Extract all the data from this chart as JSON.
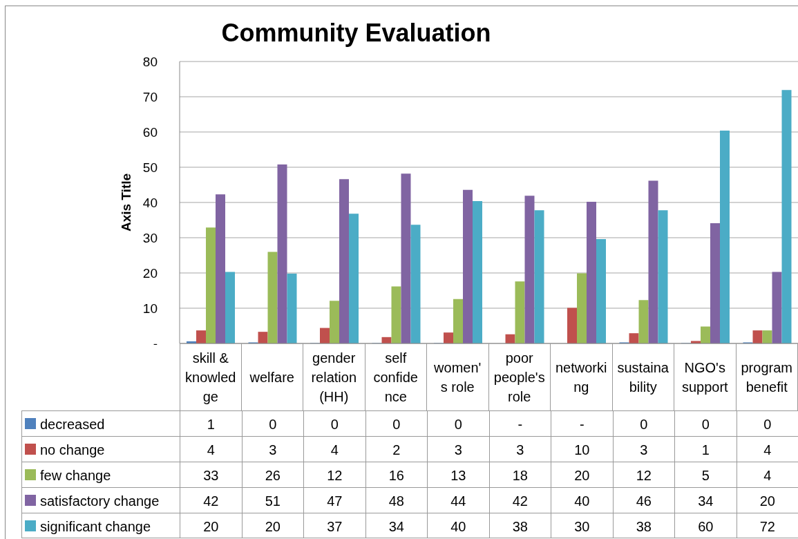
{
  "chart_data": {
    "type": "bar",
    "title": "Community Evaluation",
    "ylabel": "Axis Title",
    "categories": [
      "skill & knowledge",
      "welfare",
      "gender relation (HH)",
      "self confidence",
      "women's role",
      "poor people's role",
      "networking",
      "sustainability",
      "NGO's support",
      "program benefit"
    ],
    "series": [
      {
        "name": "decreased",
        "color": "#4f81bd",
        "values": [
          0.6,
          0.3,
          0.1,
          0.1,
          0.1,
          0,
          0,
          0.3,
          0.1,
          0.3
        ],
        "value_labels": [
          "1",
          "0",
          "0",
          "0",
          "0",
          "-",
          "-",
          "0",
          "0",
          "0"
        ]
      },
      {
        "name": "no change",
        "color": "#c0504d",
        "values": [
          3.7,
          3.3,
          4.4,
          1.8,
          3.1,
          2.6,
          10.1,
          2.9,
          0.7,
          3.7
        ],
        "value_labels": [
          "4",
          "3",
          "4",
          "2",
          "3",
          "3",
          "10",
          "3",
          "1",
          "4"
        ]
      },
      {
        "name": "few change",
        "color": "#9bbb59",
        "values": [
          32.9,
          26.0,
          12.1,
          16.2,
          12.6,
          17.6,
          19.9,
          12.3,
          4.8,
          3.7
        ],
        "value_labels": [
          "33",
          "26",
          "12",
          "16",
          "13",
          "18",
          "20",
          "12",
          "5",
          "4"
        ]
      },
      {
        "name": "satisfactory change",
        "color": "#8064a2",
        "values": [
          42.3,
          50.8,
          46.6,
          48.2,
          43.6,
          41.9,
          40.2,
          46.2,
          34.1,
          20.3
        ],
        "value_labels": [
          "42",
          "51",
          "47",
          "48",
          "44",
          "42",
          "40",
          "46",
          "34",
          "20"
        ]
      },
      {
        "name": "significant change",
        "color": "#4bacc6",
        "values": [
          20.3,
          19.8,
          36.8,
          33.7,
          40.4,
          37.8,
          29.6,
          37.8,
          60.4,
          71.9
        ],
        "value_labels": [
          "20",
          "20",
          "37",
          "34",
          "40",
          "38",
          "30",
          "38",
          "60",
          "72"
        ]
      }
    ],
    "ylim": [
      0,
      80
    ],
    "yticks": [
      {
        "value": 0,
        "label": "-"
      },
      10,
      20,
      30,
      40,
      50,
      60,
      70,
      80
    ],
    "grid": "y",
    "legend": "bottom"
  }
}
